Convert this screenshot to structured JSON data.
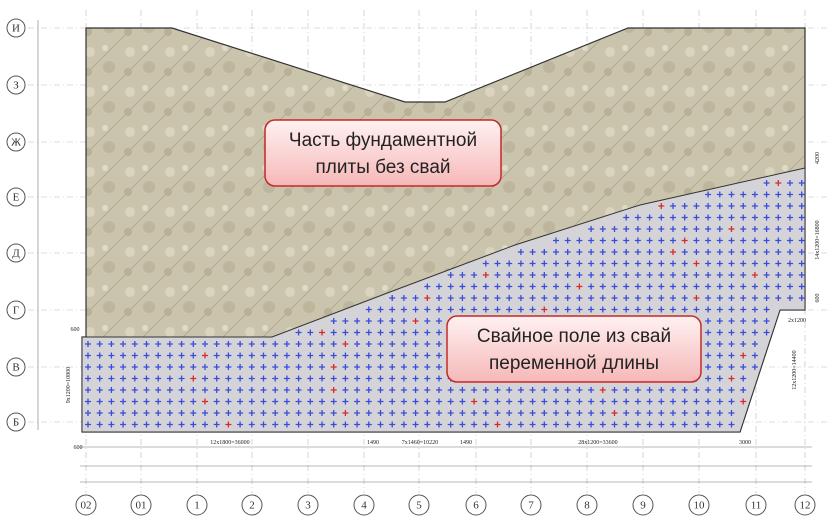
{
  "row_axes": [
    "И",
    "З",
    "Ж",
    "Е",
    "Д",
    "Г",
    "В",
    "Б"
  ],
  "column_axes": [
    "02",
    "01",
    "1",
    "2",
    "3",
    "4",
    "5",
    "6",
    "7",
    "8",
    "9",
    "10",
    "11",
    "12"
  ],
  "callouts": [
    {
      "lines": [
        "Часть фундаментной",
        "плиты без свай"
      ]
    },
    {
      "lines": [
        "Свайное поле из свай",
        "переменной длины"
      ]
    }
  ],
  "dimensions": [
    "12х1800=36000",
    "7х1460=10220",
    "28х1200=33600",
    "1490",
    "1490",
    "3000",
    "600",
    "600",
    "9х1200=10800",
    "14х1200=16800",
    "12х1200=14400",
    "2х1200",
    "4200",
    "600"
  ]
}
